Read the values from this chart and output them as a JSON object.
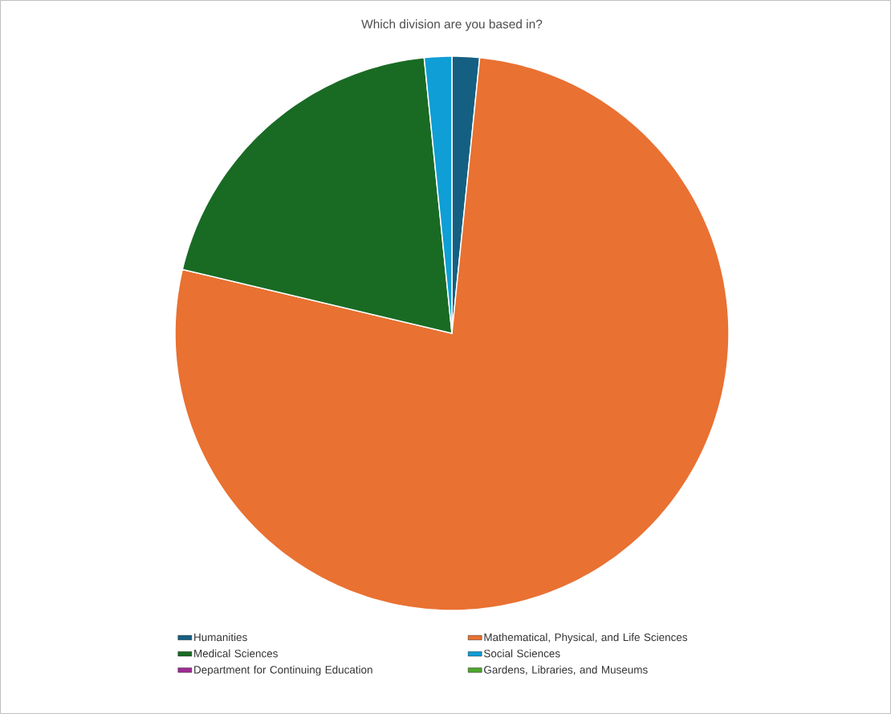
{
  "chart_data": {
    "type": "pie",
    "title": "Which division are you based in?",
    "categories": [
      "Humanities",
      "Mathematical, Physical, and Life Sciences",
      "Medical Sciences",
      "Social Sciences",
      "Department for Continuing Education",
      "Gardens, Libraries, and Museums"
    ],
    "values": [
      1.6,
      77.1,
      19.7,
      1.6,
      0,
      0
    ],
    "colors": [
      "#156082",
      "#e97132",
      "#196b24",
      "#0f9ed5",
      "#a02b93",
      "#4ea72e"
    ],
    "legend": "bottom"
  }
}
